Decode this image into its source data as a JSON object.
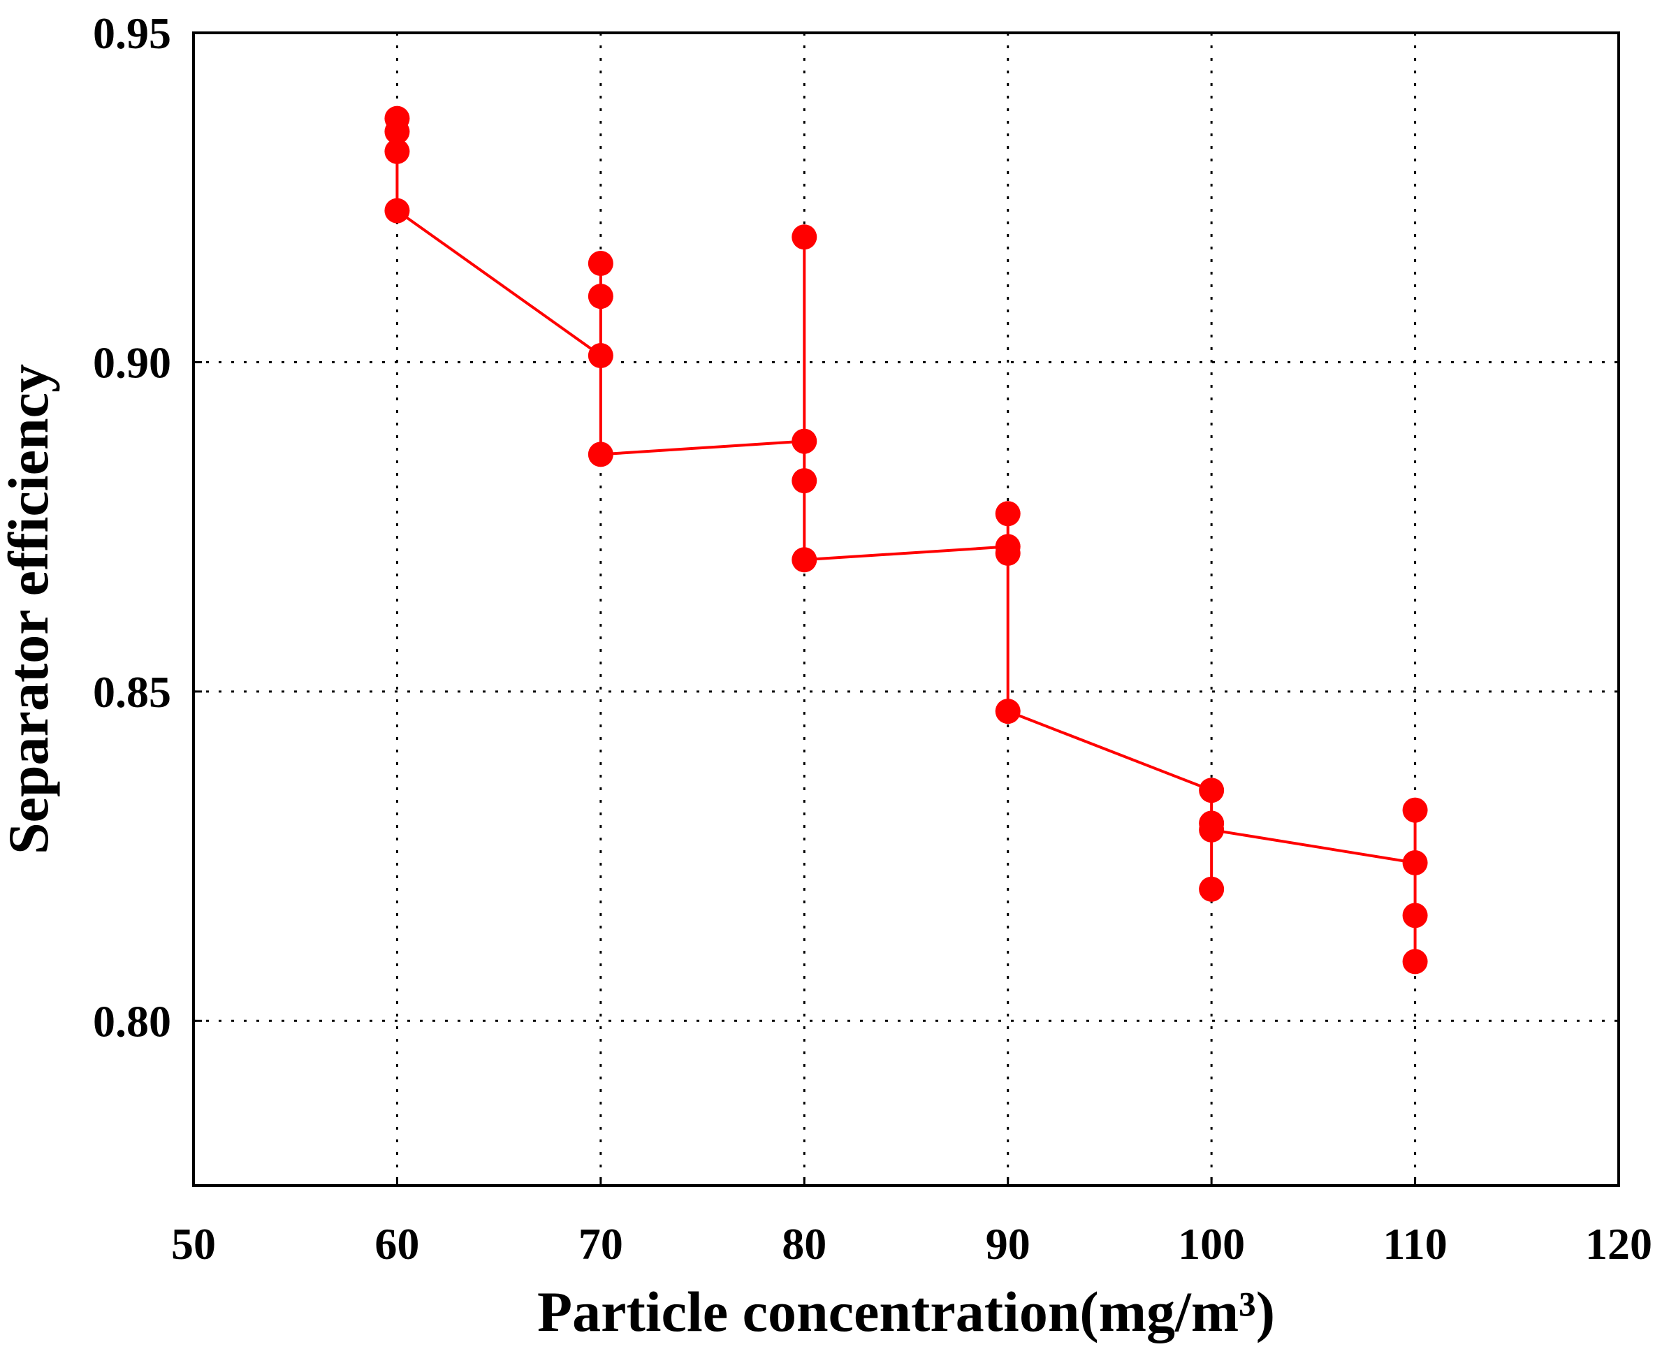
{
  "chart_data": {
    "type": "line",
    "title": "",
    "xlabel": "Particle concentration(mg/m³)",
    "ylabel": "Separator efficiency",
    "xlim": [
      50,
      120
    ],
    "ylim": [
      0.775,
      0.95
    ],
    "xticks": [
      50,
      60,
      70,
      80,
      90,
      100,
      110,
      120
    ],
    "xtick_labels": [
      "50",
      "60",
      "70",
      "80",
      "90",
      "100",
      "110",
      "120"
    ],
    "yticks": [
      0.8,
      0.85,
      0.9,
      0.95
    ],
    "ytick_labels": [
      "0.80",
      "0.85",
      "0.90",
      "0.95"
    ],
    "grid": "dotted",
    "series": [
      {
        "name": "Separator efficiency",
        "color": "#ff0000",
        "marker": "circle",
        "points": [
          {
            "x": 60,
            "y": 0.937
          },
          {
            "x": 60,
            "y": 0.935
          },
          {
            "x": 60,
            "y": 0.932
          },
          {
            "x": 60,
            "y": 0.923
          },
          {
            "x": 70,
            "y": 0.901
          },
          {
            "x": 70,
            "y": 0.91
          },
          {
            "x": 70,
            "y": 0.915
          },
          {
            "x": 70,
            "y": 0.886
          },
          {
            "x": 80,
            "y": 0.888
          },
          {
            "x": 80,
            "y": 0.919
          },
          {
            "x": 80,
            "y": 0.882
          },
          {
            "x": 80,
            "y": 0.87
          },
          {
            "x": 90,
            "y": 0.872
          },
          {
            "x": 90,
            "y": 0.877
          },
          {
            "x": 90,
            "y": 0.871
          },
          {
            "x": 90,
            "y": 0.847
          },
          {
            "x": 100,
            "y": 0.835
          },
          {
            "x": 100,
            "y": 0.83
          },
          {
            "x": 100,
            "y": 0.82
          },
          {
            "x": 100,
            "y": 0.829
          },
          {
            "x": 110,
            "y": 0.824
          },
          {
            "x": 110,
            "y": 0.832
          },
          {
            "x": 110,
            "y": 0.816
          },
          {
            "x": 110,
            "y": 0.809
          }
        ]
      }
    ]
  }
}
